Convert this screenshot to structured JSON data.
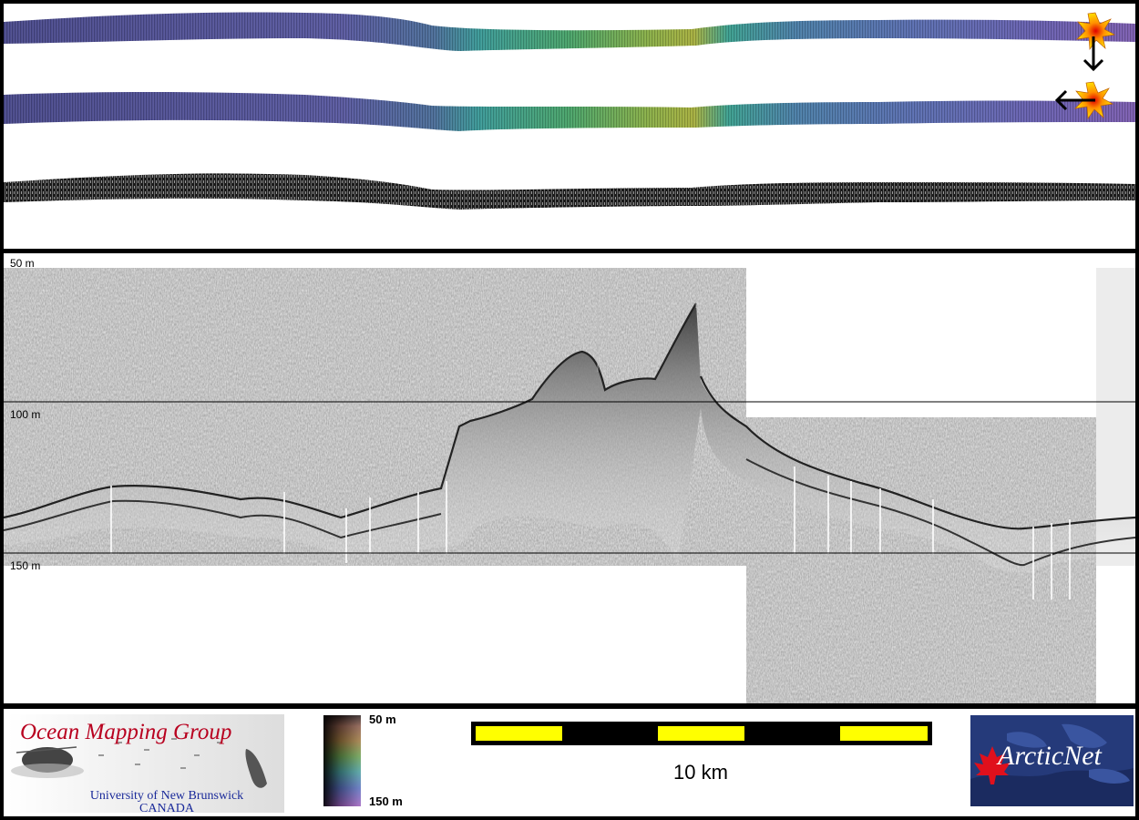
{
  "profile": {
    "depth_labels": [
      "50 m",
      "100 m",
      "150 m"
    ]
  },
  "logos": {
    "omg": {
      "title": "Ocean Mapping Group",
      "line1": "University of New Brunswick",
      "line2": "CANADA"
    },
    "arcticnet": {
      "text": "ArcticNet"
    }
  },
  "colorbar": {
    "top_label": "50 m",
    "bottom_label": "150 m"
  },
  "scale_bar": {
    "label": "10 km"
  },
  "colors": {
    "scale_yellow": "#ffff00",
    "omg_red": "#b8001f",
    "arcticnet_blue": "#253a7a",
    "maple_red": "#e0101c"
  },
  "icons": [
    "explosion-icon",
    "arrow-down-icon",
    "arrow-left-icon",
    "maple-leaf-icon"
  ]
}
